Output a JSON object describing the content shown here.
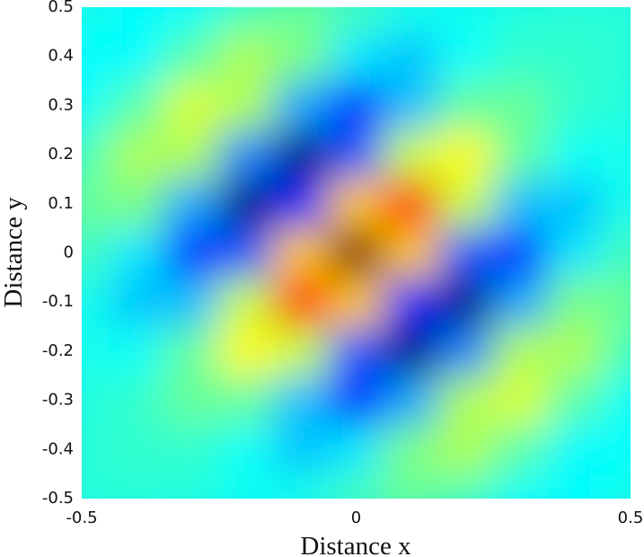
{
  "chart_data": {
    "type": "heatmap",
    "colormap": "jet",
    "xlabel": "Distance x",
    "ylabel": "Distance y",
    "xlim": [
      -0.5,
      0.5
    ],
    "ylim": [
      -0.5,
      0.5
    ],
    "xticks": [
      -0.5,
      0,
      0.5
    ],
    "yticks": [
      -0.5,
      -0.4,
      -0.3,
      -0.2,
      -0.1,
      0,
      0.1,
      0.2,
      0.3,
      0.4,
      0.5
    ],
    "x": [
      -0.5,
      -0.4,
      -0.3,
      -0.2,
      -0.1,
      0,
      0.1,
      0.2,
      0.3,
      0.4,
      0.5
    ],
    "y": [
      -0.5,
      -0.4,
      -0.3,
      -0.2,
      -0.1,
      0,
      0.1,
      0.2,
      0.3,
      0.4,
      0.5
    ],
    "z": [
      [
        0,
        0,
        -0.01,
        -0.04,
        -0.03,
        0.05,
        0.11,
        0.05,
        -0.05,
        -0.06,
        -0.02
      ],
      [
        0,
        0.02,
        0.02,
        -0.05,
        -0.16,
        -0.1,
        0.14,
        0.23,
        0.08,
        -0.07,
        -0.06
      ],
      [
        -0.01,
        0.02,
        0.11,
        0.1,
        -0.17,
        -0.42,
        -0.21,
        0.23,
        0.3,
        0.08,
        -0.05
      ],
      [
        -0.03,
        -0.05,
        0.1,
        0.37,
        0.27,
        -0.35,
        -0.7,
        -0.27,
        0.23,
        0.23,
        0.05
      ],
      [
        -0.03,
        -0.16,
        -0.17,
        0.27,
        0.78,
        0.45,
        -0.45,
        -0.7,
        -0.21,
        0.14,
        0.11
      ],
      [
        0.05,
        -0.1,
        -0.42,
        -0.35,
        0.45,
        1,
        0.45,
        -0.35,
        -0.42,
        -0.1,
        0.05
      ],
      [
        0.11,
        0.14,
        -0.21,
        -0.7,
        -0.45,
        0.45,
        0.78,
        0.27,
        -0.17,
        -0.16,
        -0.03
      ],
      [
        0.05,
        0.23,
        0.23,
        -0.27,
        -0.7,
        -0.35,
        0.27,
        0.37,
        0.1,
        -0.05,
        -0.03
      ],
      [
        -0.05,
        0.08,
        0.3,
        0.23,
        -0.21,
        -0.42,
        -0.17,
        0.1,
        0.11,
        0.02,
        -0.01
      ],
      [
        -0.06,
        -0.07,
        0.08,
        0.23,
        0.14,
        -0.1,
        -0.16,
        -0.05,
        0.02,
        0.02,
        0
      ],
      [
        -0.02,
        -0.06,
        -0.05,
        0.05,
        0.11,
        0.05,
        -0.03,
        -0.04,
        -0.01,
        0,
        0
      ]
    ]
  }
}
